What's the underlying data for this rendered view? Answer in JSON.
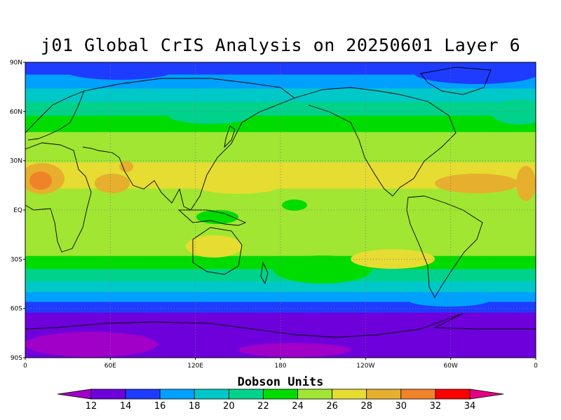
{
  "title": "j01 Global CrIS Analysis on 20250601 Layer 6",
  "lat_ticks": [
    "90N",
    "60N",
    "30N",
    "EQ",
    "30S",
    "60S",
    "90S"
  ],
  "lon_ticks": [
    "0",
    "60E",
    "120E",
    "180",
    "120W",
    "60W",
    "0"
  ],
  "colorbar": {
    "title": "Dobson Units",
    "levels": [
      "12",
      "14",
      "16",
      "18",
      "20",
      "22",
      "24",
      "26",
      "28",
      "30",
      "32",
      "34"
    ],
    "colors": [
      "#a000c8",
      "#6e00dc",
      "#1e3cff",
      "#00a0ff",
      "#00c8c8",
      "#00d28c",
      "#00dc00",
      "#a0e632",
      "#e6dc32",
      "#e6af2d",
      "#f08228",
      "#fa0000",
      "#e60082"
    ]
  },
  "chart_data": {
    "type": "heatmap",
    "title": "j01 Global CrIS Analysis on 20250601 Layer 6",
    "xlabel": "",
    "ylabel": "",
    "xlim": [
      0,
      360
    ],
    "ylim": [
      -90,
      90
    ],
    "colorbar_label": "Dobson Units",
    "colorbar_range": [
      12,
      34
    ],
    "zonal_profile": [
      {
        "lat": 87,
        "du": 15.5
      },
      {
        "lat": 78,
        "du": 17.5
      },
      {
        "lat": 70,
        "du": 19.5
      },
      {
        "lat": 62,
        "du": 21.5
      },
      {
        "lat": 53,
        "du": 23.5
      },
      {
        "lat": 42,
        "du": 25
      },
      {
        "lat": 33,
        "du": 25.5
      },
      {
        "lat": 25,
        "du": 27
      },
      {
        "lat": 18,
        "du": 26.5
      },
      {
        "lat": 8,
        "du": 25
      },
      {
        "lat": 0,
        "du": 24.5
      },
      {
        "lat": -8,
        "du": 25
      },
      {
        "lat": -17,
        "du": 25.5
      },
      {
        "lat": -24,
        "du": 24
      },
      {
        "lat": -32,
        "du": 23
      },
      {
        "lat": -40,
        "du": 21
      },
      {
        "lat": -47,
        "du": 19.5
      },
      {
        "lat": -53,
        "du": 17.5
      },
      {
        "lat": -59,
        "du": 15.5
      },
      {
        "lat": -66,
        "du": 13.5
      },
      {
        "lat": -74,
        "du": 13
      },
      {
        "lat": -82,
        "du": 12.5
      },
      {
        "lat": -88,
        "du": 13
      }
    ]
  }
}
